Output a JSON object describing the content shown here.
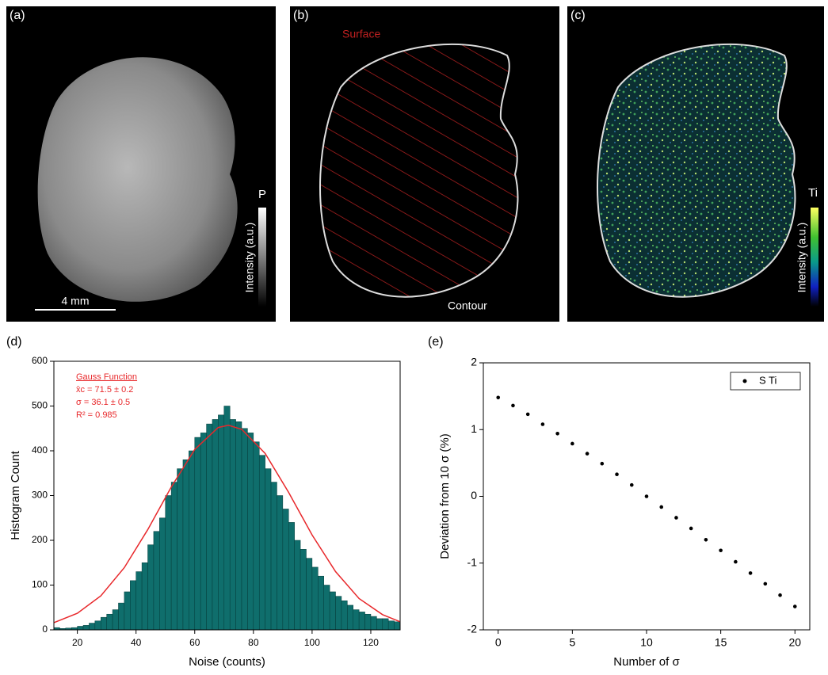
{
  "images": [
    {
      "label": "(a)",
      "colorbar_label": "P",
      "colorbar_title": "Intensity (a.u.)",
      "scale_bar": "4 mm"
    },
    {
      "label": "(b)",
      "annotations": [
        "Surface",
        "Contour"
      ]
    },
    {
      "label": "(c)",
      "colorbar_label": "Ti",
      "colorbar_title": "Intensity (a.u.)"
    }
  ],
  "chart_data": [
    {
      "type": "histogram",
      "label": "(d)",
      "xlabel": "Noise (counts)",
      "ylabel": "Histogram Count",
      "bins": [
        12,
        14,
        16,
        18,
        20,
        22,
        24,
        26,
        28,
        30,
        32,
        34,
        36,
        38,
        40,
        42,
        44,
        46,
        48,
        50,
        52,
        54,
        56,
        58,
        60,
        62,
        64,
        66,
        68,
        70,
        72,
        74,
        76,
        78,
        80,
        82,
        84,
        86,
        88,
        90,
        92,
        94,
        96,
        98,
        100,
        102,
        104,
        106,
        108,
        110,
        112,
        114,
        116,
        118,
        120,
        122,
        124,
        126,
        128,
        130
      ],
      "counts": [
        5,
        3,
        4,
        5,
        8,
        10,
        15,
        20,
        28,
        35,
        45,
        60,
        85,
        110,
        130,
        150,
        190,
        220,
        250,
        300,
        330,
        360,
        380,
        400,
        430,
        440,
        460,
        470,
        480,
        500,
        470,
        465,
        450,
        440,
        420,
        390,
        360,
        330,
        300,
        270,
        240,
        200,
        180,
        160,
        140,
        120,
        100,
        85,
        75,
        65,
        55,
        45,
        40,
        35,
        30,
        25,
        25,
        20,
        18
      ],
      "color": "#0f6e6c",
      "fit": {
        "color": "#e8282b",
        "x": [
          12,
          20,
          28,
          36,
          44,
          52,
          60,
          68,
          71.5,
          76,
          84,
          92,
          100,
          108,
          116,
          124,
          130
        ],
        "values": [
          16,
          37,
          76,
          139,
          224,
          319,
          403,
          452,
          457,
          448,
          394,
          307,
          212,
          130,
          70,
          34,
          18
        ]
      },
      "annotations": [
        "Gauss Function",
        "x̄c = 71.5 ± 0.2",
        "σ = 36.1 ± 0.5",
        "R² = 0.985"
      ],
      "xlim": [
        12,
        130
      ],
      "ylim": [
        0,
        600
      ],
      "xticks": [
        20,
        40,
        60,
        80,
        100,
        120
      ],
      "yticks": [
        0,
        100,
        200,
        300,
        400,
        500,
        600
      ]
    },
    {
      "type": "scatter",
      "label": "(e)",
      "xlabel": "Number of σ",
      "ylabel": "Deviation from 10 σ (%)",
      "series": [
        {
          "name": "S Ti",
          "color": "#000000",
          "x": [
            0,
            1,
            2,
            3,
            4,
            5,
            6,
            7,
            8,
            9,
            10,
            11,
            12,
            13,
            14,
            15,
            16,
            17,
            18,
            19,
            20
          ],
          "values": [
            1.48,
            1.36,
            1.23,
            1.08,
            0.94,
            0.79,
            0.64,
            0.49,
            0.33,
            0.17,
            0,
            -0.16,
            -0.32,
            -0.48,
            -0.65,
            -0.81,
            -0.98,
            -1.15,
            -1.31,
            -1.48,
            -1.65
          ]
        }
      ],
      "legend": "upper right",
      "xlim": [
        -1,
        21
      ],
      "ylim": [
        -2,
        2
      ],
      "xticks": [
        0,
        5,
        10,
        15,
        20
      ],
      "yticks": [
        -2,
        -1,
        0,
        1,
        2
      ]
    }
  ]
}
